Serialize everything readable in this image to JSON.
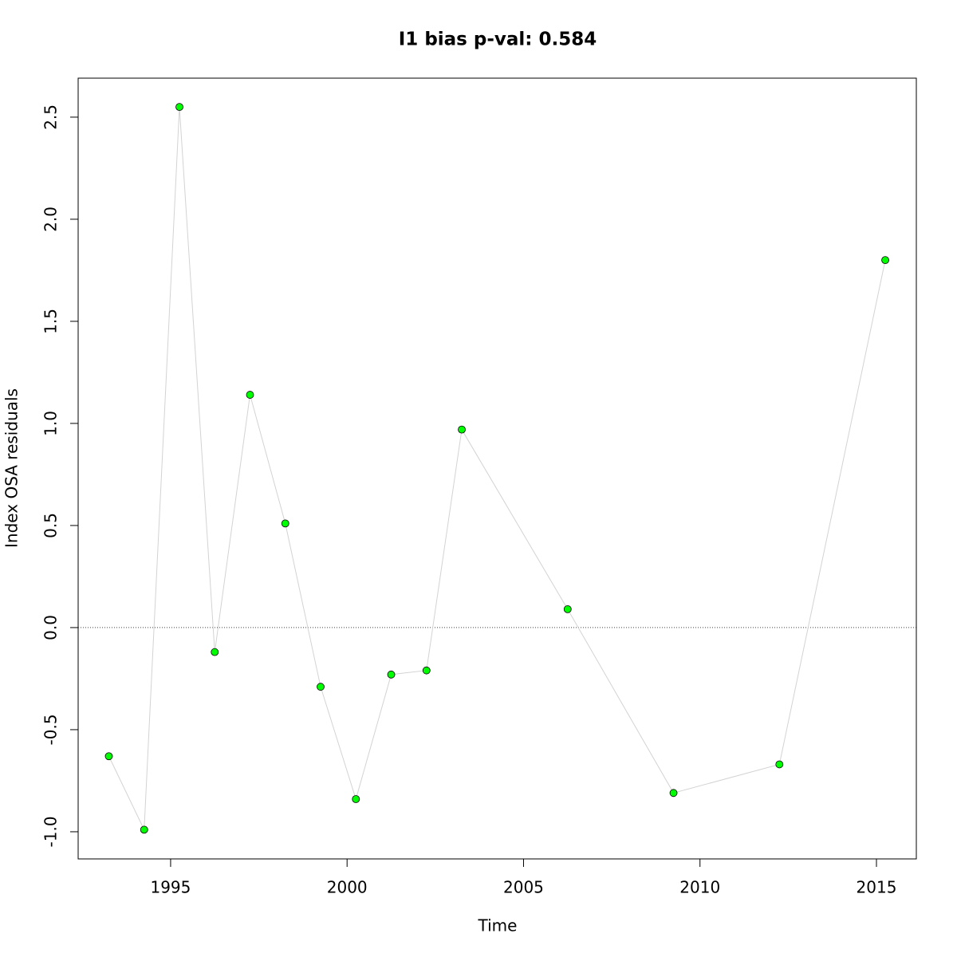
{
  "chart_data": {
    "type": "line",
    "title": "I1 bias p-val: 0.584",
    "x_label": "Time",
    "y_label": "Index OSA residuals",
    "x": [
      1993.25,
      1994.25,
      1995.25,
      1996.25,
      1997.25,
      1998.25,
      1999.25,
      2000.25,
      2001.25,
      2002.25,
      2003.25,
      2006.25,
      2009.25,
      2012.25,
      2015.25
    ],
    "series": [
      {
        "name": "residuals",
        "color": "#00ff00",
        "line_color": "#d3d3d3",
        "values": [
          -0.63,
          -0.99,
          2.55,
          -0.12,
          1.14,
          0.51,
          -0.29,
          -0.84,
          -0.23,
          -0.21,
          0.97,
          0.09,
          -0.81,
          -0.67,
          1.8
        ]
      }
    ],
    "xlim": [
      1992.38,
      2016.13
    ],
    "ylim": [
      -1.133,
      2.691
    ],
    "xticks": [
      1995,
      2000,
      2005,
      2010,
      2015
    ],
    "yticks": [
      {
        "value": -1,
        "label": "-1.0"
      },
      -0.5,
      {
        "value": 0,
        "label": "0.0"
      },
      0.5,
      {
        "value": 1,
        "label": "1.0"
      },
      1.5,
      {
        "value": 2,
        "label": "2.0"
      },
      2.5
    ],
    "reference_line": 0,
    "title_color": "#228b22"
  }
}
